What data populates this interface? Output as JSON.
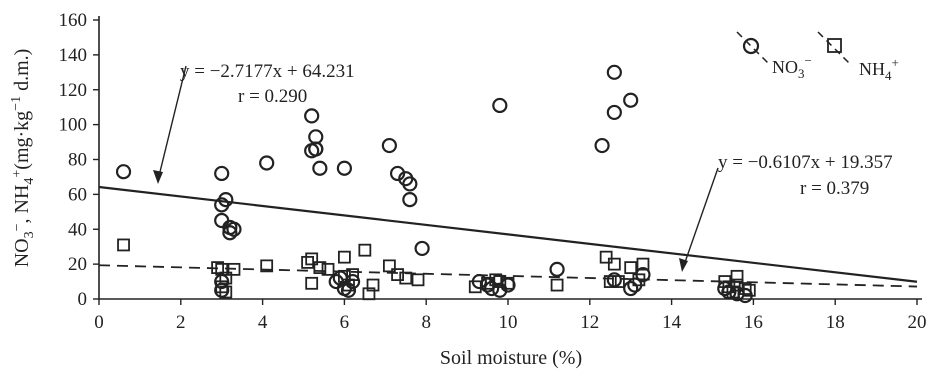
{
  "chart_data": {
    "type": "scatter",
    "xlabel": "Soil moisture (%)",
    "ylabel": "NO3−, NH4+ (mg·kg−1 d.m.)",
    "xlim": [
      0,
      20
    ],
    "ylim": [
      0,
      160
    ],
    "xticks": [
      0,
      2,
      4,
      6,
      8,
      10,
      12,
      14,
      16,
      18,
      20
    ],
    "yticks": [
      0,
      20,
      40,
      60,
      80,
      100,
      120,
      140,
      160
    ],
    "grid": false,
    "legend_placement": "top-right",
    "series": [
      {
        "name": "NO3−",
        "marker": "circle",
        "x": [
          0.6,
          3.0,
          3.1,
          3.0,
          3.2,
          3.3,
          3.2,
          3.0,
          4.1,
          5.2,
          5.3,
          5.3,
          5.2,
          5.3,
          5.4,
          6.0,
          7.1,
          7.3,
          7.5,
          7.6,
          7.6,
          7.9,
          9.8,
          12.3,
          12.6,
          12.6,
          13.0,
          3.0,
          3.0,
          5.9,
          6.0,
          6.1,
          6.2,
          9.3,
          9.5,
          9.6,
          9.8,
          10.0,
          11.2,
          12.6,
          13.0,
          13.1,
          13.3,
          15.3,
          15.4,
          15.6,
          15.8,
          5.8
        ],
        "y": [
          73,
          72,
          57,
          54,
          41,
          40,
          38,
          45,
          78,
          105,
          93,
          86,
          85,
          86,
          75,
          75,
          88,
          72,
          69,
          66,
          57,
          29,
          111,
          88,
          130,
          107,
          114,
          5,
          10,
          12,
          6,
          5,
          10,
          10,
          8,
          6,
          5,
          8,
          17,
          11,
          6,
          8,
          14,
          6,
          4,
          3,
          2,
          10
        ]
      },
      {
        "name": "NH4+",
        "marker": "square",
        "x": [
          0.6,
          2.9,
          3.0,
          3.1,
          3.1,
          3.0,
          3.3,
          4.1,
          5.1,
          5.2,
          5.4,
          5.2,
          5.6,
          6.0,
          6.0,
          6.1,
          6.2,
          6.5,
          6.7,
          6.6,
          7.1,
          7.3,
          7.5,
          7.8,
          9.2,
          9.5,
          9.7,
          9.8,
          10.0,
          11.2,
          12.4,
          12.5,
          12.6,
          12.7,
          13.0,
          13.2,
          13.3,
          15.3,
          15.4,
          15.6,
          15.6,
          15.8,
          15.9,
          15.5
        ],
        "y": [
          31,
          18,
          17,
          12,
          4,
          7,
          17,
          19,
          21,
          23,
          18,
          9,
          17,
          24,
          13,
          8,
          14,
          28,
          8,
          3,
          19,
          14,
          12,
          11,
          7,
          9,
          11,
          10,
          9,
          8,
          24,
          10,
          20,
          10,
          18,
          11,
          20,
          10,
          7,
          8,
          13,
          6,
          5,
          4
        ]
      }
    ],
    "fits": [
      {
        "series": "NO3−",
        "style": "solid",
        "slope": -2.7177,
        "intercept": 64.231,
        "equation": "y = −2.7177x + 64.231",
        "r": "r = 0.290",
        "x_range": [
          0,
          20
        ]
      },
      {
        "series": "NH4+",
        "style": "dashed",
        "slope": -0.6107,
        "intercept": 19.357,
        "equation": "y = −0.6107x + 19.357",
        "r": "r = 0.379",
        "x_range": [
          0,
          20
        ]
      }
    ]
  }
}
